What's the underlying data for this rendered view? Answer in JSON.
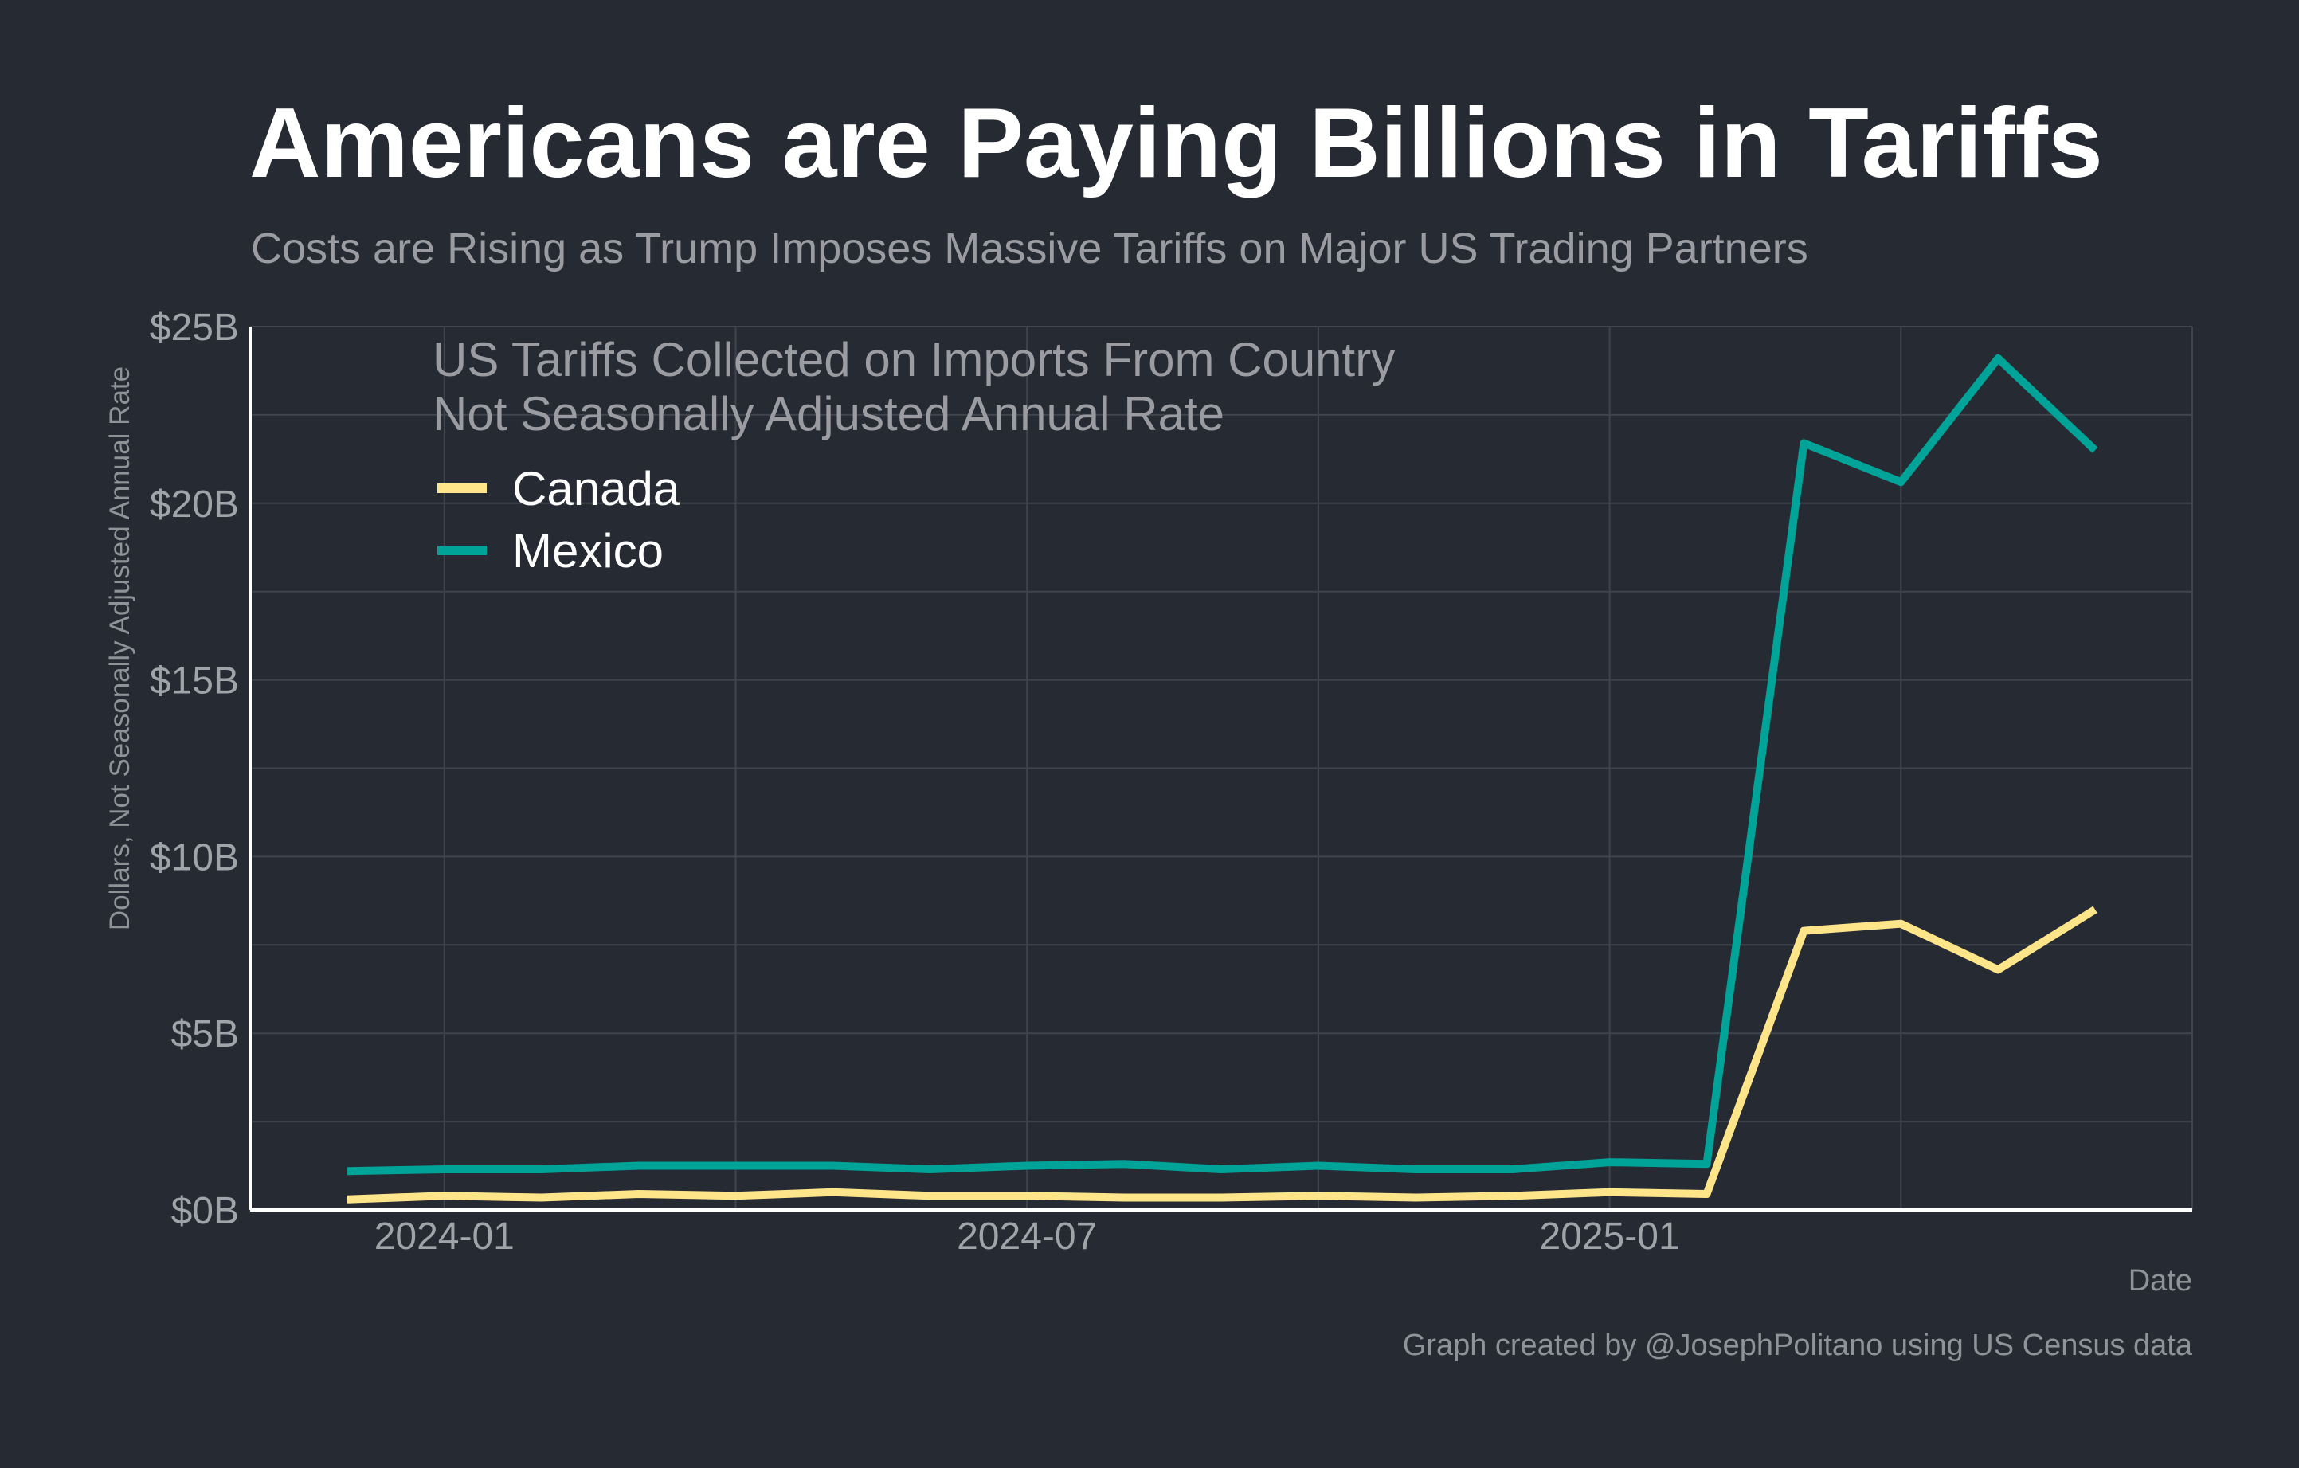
{
  "chart_data": {
    "type": "line",
    "title": "Americans are Paying Billions in Tariffs",
    "subtitle": "Costs are Rising as Trump Imposes Massive Tariffs on Major US Trading Partners",
    "annotation_lines": [
      "US Tariffs Collected on Imports From Country",
      "Not Seasonally Adjusted Annual Rate"
    ],
    "ylabel": "Dollars, Not Seasonally Adjusted Annual Rate",
    "xlabel": "Date",
    "caption": "Graph created by @JosephPolitano using US Census data",
    "x": [
      "2023-12",
      "2024-01",
      "2024-02",
      "2024-03",
      "2024-04",
      "2024-05",
      "2024-06",
      "2024-07",
      "2024-08",
      "2024-09",
      "2024-10",
      "2024-11",
      "2024-12",
      "2025-01",
      "2025-02",
      "2025-03",
      "2025-04",
      "2025-05",
      "2025-06"
    ],
    "x_ticks": [
      "2024-01",
      "2024-07",
      "2025-01"
    ],
    "xlim": [
      "2023-11-01",
      "2025-07-01"
    ],
    "ylim": [
      0,
      25
    ],
    "y_ticks": [
      0,
      5,
      10,
      15,
      20,
      25
    ],
    "y_tick_labels": [
      "$0B",
      "$5B",
      "$10B",
      "$15B",
      "$20B",
      "$25B"
    ],
    "y_unit": "billions of dollars",
    "grid": true,
    "legend_position": "top-left",
    "series": [
      {
        "name": "Canada",
        "color": "#ffe58a",
        "values": [
          0.3,
          0.4,
          0.35,
          0.45,
          0.4,
          0.5,
          0.4,
          0.4,
          0.35,
          0.35,
          0.4,
          0.35,
          0.4,
          0.5,
          0.45,
          7.9,
          8.1,
          6.8,
          8.5
        ]
      },
      {
        "name": "Mexico",
        "color": "#00a398",
        "values": [
          1.1,
          1.15,
          1.15,
          1.25,
          1.25,
          1.25,
          1.15,
          1.25,
          1.3,
          1.15,
          1.25,
          1.15,
          1.15,
          1.35,
          1.3,
          21.7,
          20.6,
          24.1,
          21.5
        ]
      }
    ]
  }
}
